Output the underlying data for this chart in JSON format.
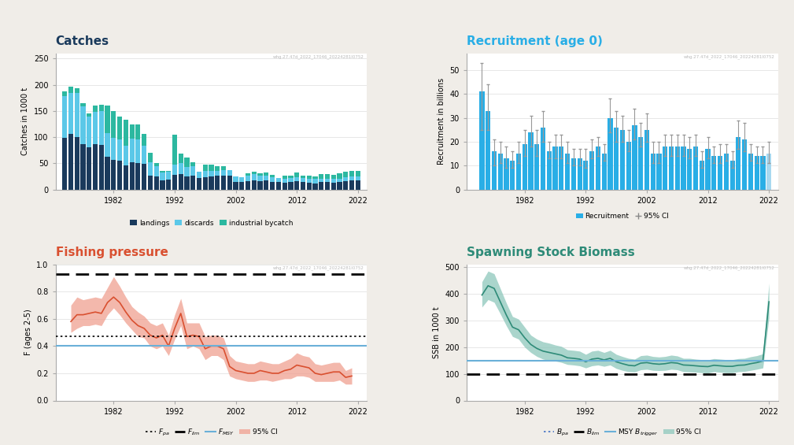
{
  "catches_years": [
    1974,
    1975,
    1976,
    1977,
    1978,
    1979,
    1980,
    1981,
    1982,
    1983,
    1984,
    1985,
    1986,
    1987,
    1988,
    1989,
    1990,
    1991,
    1992,
    1993,
    1994,
    1995,
    1996,
    1997,
    1998,
    1999,
    2000,
    2001,
    2002,
    2003,
    2004,
    2005,
    2006,
    2007,
    2008,
    2009,
    2010,
    2011,
    2012,
    2013,
    2014,
    2015,
    2016,
    2017,
    2018,
    2019,
    2020,
    2021,
    2022
  ],
  "landings": [
    98,
    106,
    100,
    87,
    80,
    87,
    85,
    63,
    56,
    55,
    46,
    52,
    51,
    49,
    27,
    25,
    17,
    19,
    28,
    30,
    25,
    26,
    22,
    24,
    25,
    26,
    27,
    27,
    15,
    14,
    16,
    17,
    16,
    17,
    15,
    14,
    13,
    14,
    16,
    14,
    13,
    12,
    14,
    14,
    13,
    14,
    16,
    17,
    17
  ],
  "discards": [
    80,
    78,
    85,
    72,
    60,
    62,
    65,
    45,
    42,
    40,
    38,
    45,
    45,
    35,
    25,
    20,
    15,
    15,
    20,
    20,
    18,
    18,
    12,
    12,
    10,
    10,
    10,
    10,
    10,
    10,
    10,
    12,
    10,
    10,
    8,
    8,
    8,
    8,
    8,
    8,
    8,
    8,
    7,
    7,
    7,
    7,
    8,
    8,
    8
  ],
  "ind_bycatch": [
    10,
    12,
    8,
    6,
    5,
    12,
    12,
    52,
    52,
    45,
    50,
    28,
    28,
    23,
    18,
    5,
    3,
    2,
    56,
    18,
    18,
    8,
    0,
    12,
    12,
    8,
    8,
    0,
    0,
    0,
    5,
    5,
    5,
    5,
    5,
    0,
    5,
    5,
    8,
    5,
    5,
    5,
    8,
    8,
    8,
    10,
    10,
    10,
    10
  ],
  "recruitment_years": [
    1975,
    1976,
    1977,
    1978,
    1979,
    1980,
    1981,
    1982,
    1983,
    1984,
    1985,
    1986,
    1987,
    1988,
    1989,
    1990,
    1991,
    1992,
    1993,
    1994,
    1995,
    1996,
    1997,
    1998,
    1999,
    2000,
    2001,
    2002,
    2003,
    2004,
    2005,
    2006,
    2007,
    2008,
    2009,
    2010,
    2011,
    2012,
    2013,
    2014,
    2015,
    2016,
    2017,
    2018,
    2019,
    2020,
    2021,
    2022
  ],
  "recruitment": [
    41,
    33,
    16,
    15,
    13,
    12,
    15,
    19,
    24,
    19,
    26,
    16,
    18,
    18,
    15,
    13,
    13,
    12,
    16,
    18,
    15,
    30,
    26,
    25,
    20,
    27,
    22,
    25,
    15,
    15,
    18,
    18,
    18,
    18,
    17,
    18,
    12,
    17,
    14,
    14,
    15,
    12,
    22,
    21,
    15,
    14,
    14,
    15
  ],
  "rec_lo": [
    25,
    25,
    10,
    11,
    9,
    9,
    11,
    14,
    18,
    14,
    20,
    13,
    13,
    13,
    11,
    10,
    10,
    9,
    13,
    14,
    12,
    24,
    20,
    20,
    16,
    21,
    18,
    20,
    11,
    11,
    14,
    14,
    14,
    14,
    13,
    14,
    9,
    13,
    11,
    11,
    12,
    9,
    17,
    16,
    12,
    11,
    11,
    11
  ],
  "rec_hi": [
    53,
    44,
    21,
    20,
    18,
    16,
    20,
    25,
    31,
    25,
    33,
    20,
    23,
    23,
    20,
    17,
    17,
    17,
    21,
    22,
    19,
    38,
    33,
    31,
    25,
    34,
    28,
    32,
    20,
    20,
    23,
    23,
    23,
    23,
    22,
    23,
    16,
    22,
    18,
    19,
    19,
    16,
    29,
    28,
    19,
    18,
    18,
    20
  ],
  "fishing_years": [
    1975,
    1976,
    1977,
    1978,
    1979,
    1980,
    1981,
    1982,
    1983,
    1984,
    1985,
    1986,
    1987,
    1988,
    1989,
    1990,
    1991,
    1992,
    1993,
    1994,
    1995,
    1996,
    1997,
    1998,
    1999,
    2000,
    2001,
    2002,
    2003,
    2004,
    2005,
    2006,
    2007,
    2008,
    2009,
    2010,
    2011,
    2012,
    2013,
    2014,
    2015,
    2016,
    2017,
    2018,
    2019,
    2020,
    2021
  ],
  "F_mean": [
    0.58,
    0.63,
    0.63,
    0.64,
    0.65,
    0.64,
    0.72,
    0.76,
    0.72,
    0.65,
    0.59,
    0.55,
    0.53,
    0.48,
    0.46,
    0.48,
    0.4,
    0.53,
    0.64,
    0.47,
    0.48,
    0.47,
    0.38,
    0.4,
    0.4,
    0.38,
    0.25,
    0.22,
    0.21,
    0.2,
    0.2,
    0.22,
    0.21,
    0.2,
    0.2,
    0.22,
    0.23,
    0.26,
    0.25,
    0.24,
    0.2,
    0.19,
    0.2,
    0.21,
    0.21,
    0.17,
    0.18
  ],
  "F_lo": [
    0.5,
    0.53,
    0.55,
    0.55,
    0.56,
    0.55,
    0.63,
    0.68,
    0.63,
    0.57,
    0.52,
    0.47,
    0.46,
    0.4,
    0.38,
    0.4,
    0.33,
    0.45,
    0.55,
    0.38,
    0.4,
    0.38,
    0.3,
    0.33,
    0.33,
    0.3,
    0.18,
    0.16,
    0.15,
    0.14,
    0.14,
    0.15,
    0.15,
    0.14,
    0.15,
    0.16,
    0.16,
    0.18,
    0.18,
    0.17,
    0.14,
    0.14,
    0.14,
    0.14,
    0.15,
    0.12,
    0.12
  ],
  "F_hi": [
    0.7,
    0.76,
    0.74,
    0.75,
    0.76,
    0.75,
    0.83,
    0.91,
    0.84,
    0.76,
    0.69,
    0.65,
    0.62,
    0.57,
    0.55,
    0.57,
    0.48,
    0.63,
    0.75,
    0.57,
    0.57,
    0.57,
    0.47,
    0.48,
    0.48,
    0.46,
    0.33,
    0.29,
    0.28,
    0.27,
    0.27,
    0.29,
    0.28,
    0.27,
    0.27,
    0.29,
    0.31,
    0.35,
    0.33,
    0.32,
    0.27,
    0.26,
    0.27,
    0.28,
    0.28,
    0.22,
    0.24
  ],
  "F_pa": 0.47,
  "F_lim": 0.93,
  "F_msy": 0.4,
  "ssb_years": [
    1975,
    1976,
    1977,
    1978,
    1979,
    1980,
    1981,
    1982,
    1983,
    1984,
    1985,
    1986,
    1987,
    1988,
    1989,
    1990,
    1991,
    1992,
    1993,
    1994,
    1995,
    1996,
    1997,
    1998,
    1999,
    2000,
    2001,
    2002,
    2003,
    2004,
    2005,
    2006,
    2007,
    2008,
    2009,
    2010,
    2011,
    2012,
    2013,
    2014,
    2015,
    2016,
    2017,
    2018,
    2019,
    2020,
    2021,
    2022
  ],
  "SSB_mean": [
    395,
    430,
    420,
    370,
    320,
    275,
    265,
    235,
    210,
    195,
    185,
    180,
    175,
    170,
    160,
    158,
    155,
    145,
    155,
    158,
    152,
    158,
    145,
    138,
    132,
    130,
    140,
    142,
    138,
    136,
    138,
    142,
    140,
    133,
    132,
    130,
    128,
    127,
    132,
    130,
    128,
    128,
    132,
    133,
    138,
    142,
    148,
    370
  ],
  "SSB_lo": [
    350,
    378,
    368,
    325,
    280,
    240,
    230,
    200,
    180,
    165,
    155,
    150,
    148,
    143,
    135,
    133,
    130,
    122,
    130,
    133,
    128,
    133,
    120,
    113,
    108,
    107,
    115,
    117,
    113,
    112,
    113,
    117,
    115,
    108,
    107,
    106,
    104,
    103,
    108,
    106,
    104,
    104,
    108,
    109,
    113,
    117,
    122,
    310
  ],
  "SSB_hi": [
    445,
    485,
    475,
    420,
    365,
    315,
    305,
    275,
    245,
    230,
    220,
    215,
    208,
    203,
    190,
    188,
    185,
    173,
    185,
    188,
    180,
    188,
    173,
    165,
    158,
    155,
    168,
    170,
    165,
    163,
    165,
    170,
    167,
    158,
    158,
    155,
    153,
    152,
    157,
    155,
    153,
    153,
    157,
    158,
    164,
    168,
    175,
    440
  ],
  "B_pa": 150,
  "B_lim": 100,
  "MSY_Btrigger": 150,
  "col_landing": "#1a3a5c",
  "col_discards": "#5bc8e8",
  "col_indbatch": "#2cb8a0",
  "col_recruit": "#29aee6",
  "col_rec_shade": "#a8d8ef",
  "col_F_line": "#d95030",
  "col_F_fill": "#f0a090",
  "col_ssb_line": "#2e8b78",
  "col_ssb_fill": "#8ec8bc",
  "col_blue_ref": "#6ab0d8",
  "col_bpa_line": "#4472c4",
  "col_title_catches": "#1a3a5c",
  "col_title_fp": "#d95030",
  "col_title_rec": "#29aee6",
  "col_title_ssb": "#2e8b78",
  "bg_color": "#f0ede8",
  "watermark": "whg.27.47d_2022_17046_20224281I0752",
  "catches_title": "Catches",
  "recruitment_title": "Recruitment (age 0)",
  "fishing_title": "Fishing pressure",
  "ssb_title": "Spawning Stock Biomass"
}
